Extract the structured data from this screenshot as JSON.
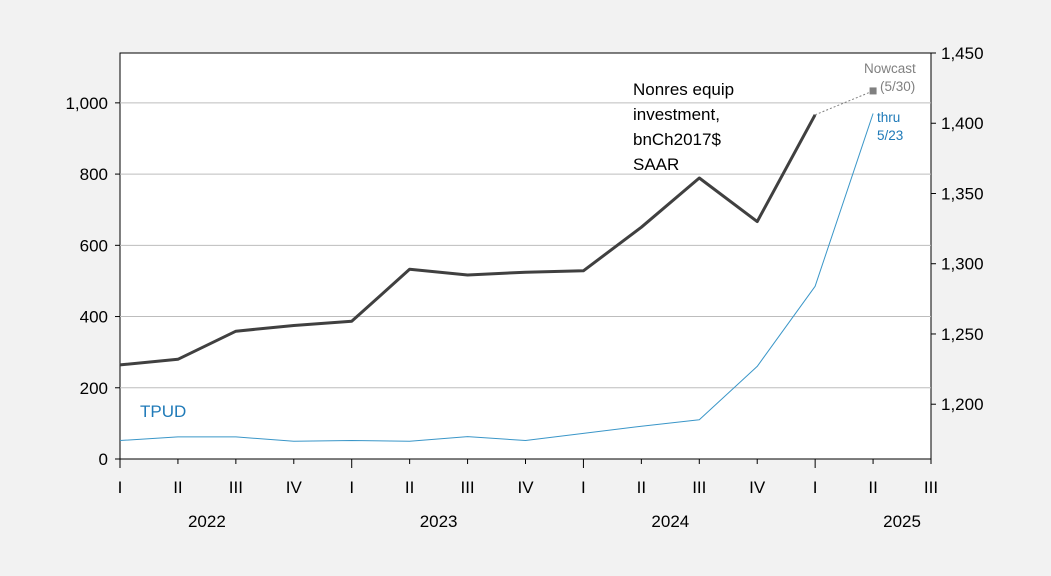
{
  "chart_data": {
    "type": "line",
    "x_categories": [
      "I",
      "II",
      "III",
      "IV",
      "I",
      "II",
      "III",
      "IV",
      "I",
      "II",
      "III",
      "IV",
      "I",
      "II",
      "III"
    ],
    "year_labels": [
      {
        "label": "2022",
        "center_index": 1.5
      },
      {
        "label": "2023",
        "center_index": 5.5
      },
      {
        "label": "2024",
        "center_index": 9.5
      },
      {
        "label": "2025",
        "center_index": 13.5
      }
    ],
    "left_axis": {
      "ylim": [
        0,
        1140
      ],
      "ticks": [
        0,
        200,
        400,
        600,
        800,
        1000
      ],
      "tick_labels": [
        "0",
        "200",
        "400",
        "600",
        "800",
        "1,000"
      ]
    },
    "right_axis": {
      "ylim": [
        1161,
        1450
      ],
      "ticks": [
        1200,
        1250,
        1300,
        1350,
        1400,
        1450
      ],
      "tick_labels": [
        "1,200",
        "1,250",
        "1,300",
        "1,350",
        "1,400",
        "1,450"
      ]
    },
    "grid": "horizontal",
    "series": [
      {
        "name": "TPUD",
        "axis": "left",
        "color": "#3a96c8",
        "x": [
          0,
          1,
          2,
          3,
          4,
          5,
          6,
          7,
          8,
          9,
          10,
          11,
          12,
          13
        ],
        "values": [
          52,
          62,
          62,
          50,
          52,
          50,
          63,
          52,
          72,
          92,
          110,
          260,
          485,
          970
        ]
      },
      {
        "name": "",
        "axis": "right",
        "color": "#404040",
        "x": [
          0,
          1,
          2,
          3,
          4,
          5,
          6,
          7,
          8,
          9,
          10,
          11,
          12
        ],
        "values": [
          1228,
          1232,
          1252,
          1256,
          1259,
          1296,
          1292,
          1294,
          1295,
          1326,
          1361,
          1330,
          1406
        ]
      }
    ],
    "nowcast": {
      "x": 13,
      "value": 1423,
      "axis": "right",
      "color": "#808080"
    },
    "annotations": {
      "main_label": [
        "Nonres equip",
        "investment,",
        "bnCh2017$",
        "SAAR"
      ],
      "tpud_label": "TPUD",
      "thru_label": [
        "thru",
        "5/23"
      ],
      "nowcast_label": "Nowcast",
      "nowcast_date": "(5/30)"
    }
  }
}
